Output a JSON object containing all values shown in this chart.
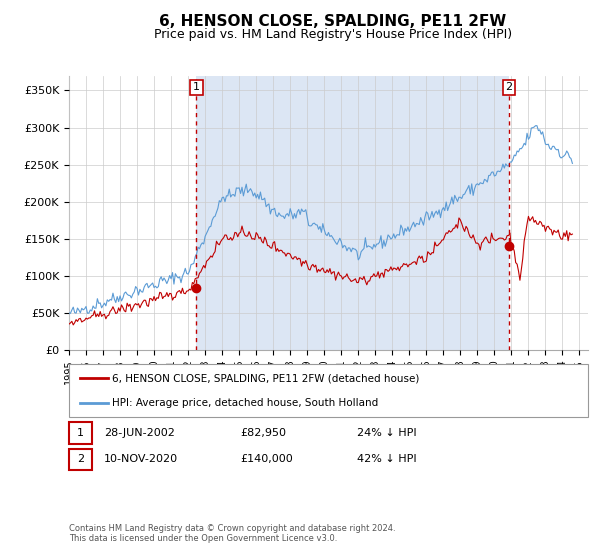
{
  "title": "6, HENSON CLOSE, SPALDING, PE11 2FW",
  "subtitle": "Price paid vs. HM Land Registry's House Price Index (HPI)",
  "title_fontsize": 11,
  "subtitle_fontsize": 9,
  "hpi_color": "#5b9bd5",
  "price_color": "#c00000",
  "vline_color": "#c00000",
  "background_color": "#ffffff",
  "plot_bg_color": "#ffffff",
  "shaded_color": "#dce6f4",
  "grid_color": "#cccccc",
  "ylabel_ticks": [
    "£0",
    "£50K",
    "£100K",
    "£150K",
    "£200K",
    "£250K",
    "£300K",
    "£350K"
  ],
  "ytick_values": [
    0,
    50000,
    100000,
    150000,
    200000,
    250000,
    300000,
    350000
  ],
  "ylim": [
    0,
    370000
  ],
  "xlim_start": 1995.0,
  "xlim_end": 2025.5,
  "transaction1": {
    "date": 2002.49,
    "price": 82950,
    "label": "1"
  },
  "transaction2": {
    "date": 2020.86,
    "price": 140000,
    "label": "2"
  },
  "legend_entry1": "6, HENSON CLOSE, SPALDING, PE11 2FW (detached house)",
  "legend_entry2": "HPI: Average price, detached house, South Holland",
  "table_row1": [
    "1",
    "28-JUN-2002",
    "£82,950",
    "24% ↓ HPI"
  ],
  "table_row2": [
    "2",
    "10-NOV-2020",
    "£140,000",
    "42% ↓ HPI"
  ],
  "footnote": "Contains HM Land Registry data © Crown copyright and database right 2024.\nThis data is licensed under the Open Government Licence v3.0."
}
